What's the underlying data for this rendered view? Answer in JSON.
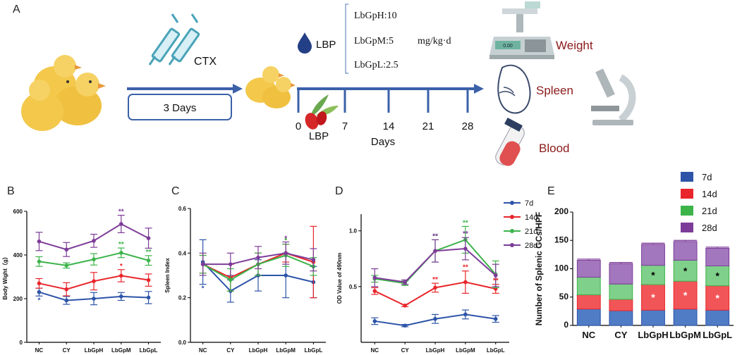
{
  "panel_labels": {
    "a": "A",
    "b": "B",
    "c": "C",
    "d": "D",
    "e": "E"
  },
  "schematic": {
    "cyc_label": "CTX",
    "duration": "3 Days",
    "lbp_title": "LBP",
    "doses": [
      "LbGpH:10",
      "LbGpM:5",
      "LbGpL:2.5"
    ],
    "dose_unit": "mg/kg·d",
    "lbp_label": "LBP",
    "day_ticks": [
      "0",
      "7",
      "14",
      "21",
      "28"
    ],
    "days_label": "Days",
    "out_weight": "Weight",
    "out_spleen": "Spleen",
    "out_blood": "Blood",
    "scale_readout": "0.00"
  },
  "chart_data": [
    {
      "id": "B",
      "type": "line",
      "ylabel": "Body Wight（g）",
      "ylim": [
        0,
        600
      ],
      "yticks": [
        "0",
        "200",
        "400",
        "600"
      ],
      "categories": [
        "NC",
        "CY",
        "LbGpH",
        "LbGpM",
        "LbGpL"
      ],
      "series": [
        {
          "name": "7d",
          "color": "#2d54a8",
          "values": [
            230,
            192,
            200,
            210,
            205
          ],
          "err": [
            18,
            18,
            28,
            18,
            28
          ]
        },
        {
          "name": "14d",
          "color": "#e8262b",
          "values": [
            270,
            243,
            280,
            305,
            285
          ],
          "err": [
            22,
            30,
            40,
            28,
            28
          ]
        },
        {
          "name": "21d",
          "color": "#3cb44a",
          "values": [
            370,
            352,
            380,
            410,
            375
          ],
          "err": [
            22,
            12,
            26,
            22,
            22
          ]
        },
        {
          "name": "28d",
          "color": "#7d3c98",
          "values": [
            462,
            425,
            465,
            542,
            477
          ],
          "err": [
            42,
            32,
            30,
            40,
            46
          ]
        }
      ],
      "annotations": [
        {
          "cat": "NC",
          "series": "7d",
          "text": "*"
        },
        {
          "cat": "LbGpM",
          "series": "14d",
          "text": "*"
        },
        {
          "cat": "LbGpM",
          "series": "21d",
          "text": "**"
        },
        {
          "cat": "LbGpL",
          "series": "21d",
          "text": "**"
        },
        {
          "cat": "LbGpM",
          "series": "28d",
          "text": "**"
        }
      ]
    },
    {
      "id": "C",
      "type": "line",
      "ylabel": "Spleen Index",
      "ylim": [
        0,
        0.6
      ],
      "yticks": [
        "0.0",
        "0.2",
        "0.4",
        "0.6"
      ],
      "categories": [
        "NC",
        "CY",
        "LbGpH",
        "LbGpM",
        "LbGpL"
      ],
      "series": [
        {
          "name": "7d",
          "color": "#2d54a8",
          "values": [
            0.36,
            0.23,
            0.3,
            0.3,
            0.27
          ],
          "err": [
            0.1,
            0.05,
            0.07,
            0.1,
            0.07
          ]
        },
        {
          "name": "14d",
          "color": "#e8262b",
          "values": [
            0.35,
            0.29,
            0.35,
            0.4,
            0.36
          ],
          "err": [
            0.04,
            0.06,
            0.05,
            0.04,
            0.16
          ]
        },
        {
          "name": "21d",
          "color": "#3cb44a",
          "values": [
            0.35,
            0.28,
            0.35,
            0.39,
            0.34
          ],
          "err": [
            0.04,
            0.05,
            0.05,
            0.05,
            0.04
          ]
        },
        {
          "name": "28d",
          "color": "#7d3c98",
          "values": [
            0.35,
            0.35,
            0.38,
            0.4,
            0.37
          ],
          "err": [
            0.05,
            0.05,
            0.05,
            0.05,
            0.05
          ]
        }
      ],
      "annotations": [
        {
          "cat": "NC",
          "series": "7d",
          "text": "*"
        },
        {
          "cat": "LbGpM",
          "series": "14d",
          "text": "*"
        },
        {
          "cat": "LbGpM",
          "series": "21d",
          "text": "*"
        },
        {
          "cat": "LbGpM",
          "series": "28d",
          "text": "*"
        }
      ]
    },
    {
      "id": "D",
      "type": "line",
      "ylabel": "OD Value of 490nm",
      "ylim": [
        0,
        1.15
      ],
      "yticks": [
        "0.5",
        "1.0"
      ],
      "categories": [
        "NC",
        "CY",
        "LbGpH",
        "LbGpM",
        "LbGpL"
      ],
      "series": [
        {
          "name": "7d",
          "color": "#2d54a8",
          "values": [
            0.19,
            0.15,
            0.21,
            0.25,
            0.21
          ],
          "err": [
            0.03,
            0.01,
            0.04,
            0.04,
            0.03
          ]
        },
        {
          "name": "14d",
          "color": "#e8262b",
          "values": [
            0.46,
            0.33,
            0.49,
            0.54,
            0.48
          ],
          "err": [
            0.03,
            0.01,
            0.04,
            0.1,
            0.04
          ]
        },
        {
          "name": "21d",
          "color": "#3cb44a",
          "values": [
            0.57,
            0.53,
            0.82,
            0.92,
            0.61
          ],
          "err": [
            0.03,
            0.02,
            0.1,
            0.12,
            0.12
          ]
        },
        {
          "name": "28d",
          "color": "#7d3c98",
          "values": [
            0.58,
            0.54,
            0.82,
            0.84,
            0.6
          ],
          "err": [
            0.08,
            0.02,
            0.1,
            0.1,
            0.1
          ]
        }
      ],
      "annotations": [
        {
          "cat": "LbGpH",
          "series": "14d",
          "text": "**"
        },
        {
          "cat": "LbGpM",
          "series": "14d",
          "text": "**"
        },
        {
          "cat": "LbGpL",
          "series": "14d",
          "text": "**"
        },
        {
          "cat": "LbGpH",
          "series": "21d",
          "text": "**"
        },
        {
          "cat": "LbGpM",
          "series": "21d",
          "text": "**"
        },
        {
          "cat": "LbGpH",
          "series": "28d",
          "text": "**"
        },
        {
          "cat": "LbGpM",
          "series": "28d",
          "text": "**"
        }
      ],
      "legend": [
        "7d",
        "14d",
        "21d",
        "28d"
      ]
    },
    {
      "id": "E",
      "type": "bar",
      "stacked": true,
      "ylabel": "Number of Splenic GCs/HPF",
      "ylim": [
        0,
        200
      ],
      "yticks": [
        "0",
        "50",
        "100",
        "150",
        "200"
      ],
      "categories": [
        "NC",
        "CY",
        "LbGpH",
        "LbGpM",
        "LbGpL"
      ],
      "series": [
        {
          "name": "7d",
          "color": "#2d54a8",
          "values": [
            29,
            26,
            27,
            29,
            27
          ],
          "err": [
            2,
            2,
            2,
            2,
            2
          ]
        },
        {
          "name": "14d",
          "color": "#e8262b",
          "values": [
            25,
            20,
            45,
            49,
            43
          ],
          "err": [
            2,
            2,
            2,
            2,
            2
          ]
        },
        {
          "name": "21d",
          "color": "#3cb44a",
          "values": [
            31,
            27,
            34,
            37,
            35
          ],
          "err": [
            2,
            2,
            2,
            2,
            2
          ]
        },
        {
          "name": "28d",
          "color": "#7d3c98",
          "values": [
            30,
            36,
            37,
            33,
            31
          ],
          "err": [
            2,
            2,
            2,
            2,
            2
          ]
        }
      ],
      "annotations": [
        {
          "cat": "LbGpH",
          "series": "14d",
          "text": "*"
        },
        {
          "cat": "LbGpM",
          "series": "14d",
          "text": "*"
        },
        {
          "cat": "LbGpL",
          "series": "14d",
          "text": "*"
        },
        {
          "cat": "LbGpH",
          "series": "21d",
          "text": "*"
        },
        {
          "cat": "LbGpM",
          "series": "21d",
          "text": "*"
        },
        {
          "cat": "LbGpL",
          "series": "21d",
          "text": "*"
        }
      ],
      "legend": [
        "7d",
        "14d",
        "21d",
        "28d"
      ]
    }
  ]
}
